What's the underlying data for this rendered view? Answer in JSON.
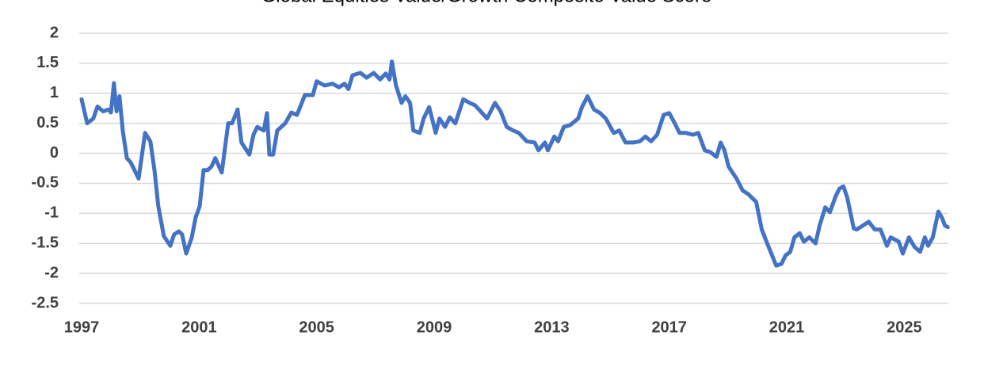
{
  "chart_data": {
    "type": "line",
    "title": "Global Equities Value/Growth Composite Value Score",
    "series": [
      {
        "name": "Composite Value Score",
        "color": "#4472c4",
        "x": [
          1997.0,
          1997.19,
          1997.4,
          1997.54,
          1997.73,
          1997.92,
          1998.0,
          1998.1,
          1998.19,
          1998.29,
          1998.4,
          1998.54,
          1998.67,
          1998.94,
          1999.16,
          1999.34,
          1999.48,
          1999.61,
          1999.8,
          2000.02,
          2000.15,
          2000.31,
          2000.42,
          2000.56,
          2000.75,
          2000.88,
          2001.02,
          2001.15,
          2001.29,
          2001.42,
          2001.55,
          2001.77,
          2001.99,
          2002.12,
          2002.31,
          2002.44,
          2002.71,
          2002.85,
          2002.98,
          2003.2,
          2003.31,
          2003.39,
          2003.52,
          2003.66,
          2003.93,
          2004.14,
          2004.33,
          2004.6,
          2004.87,
          2005.0,
          2005.27,
          2005.54,
          2005.76,
          2005.95,
          2006.08,
          2006.22,
          2006.49,
          2006.7,
          2006.94,
          2007.16,
          2007.35,
          2007.48,
          2007.56,
          2007.7,
          2007.89,
          2008.02,
          2008.18,
          2008.29,
          2008.51,
          2008.64,
          2008.83,
          2009.05,
          2009.18,
          2009.37,
          2009.53,
          2009.72,
          2009.99,
          2010.21,
          2010.39,
          2010.58,
          2010.8,
          2011.07,
          2011.26,
          2011.47,
          2011.69,
          2011.88,
          2012.15,
          2012.42,
          2012.55,
          2012.77,
          2012.87,
          2013.09,
          2013.22,
          2013.41,
          2013.63,
          2013.9,
          2014.03,
          2014.22,
          2014.44,
          2014.65,
          2014.84,
          2015.11,
          2015.3,
          2015.51,
          2015.78,
          2016.0,
          2016.19,
          2016.38,
          2016.59,
          2016.81,
          2017.0,
          2017.19,
          2017.35,
          2017.56,
          2017.81,
          2017.99,
          2018.21,
          2018.4,
          2018.61,
          2018.75,
          2018.88,
          2019.02,
          2019.29,
          2019.5,
          2019.69,
          2019.96,
          2020.15,
          2020.31,
          2020.45,
          2020.64,
          2020.82,
          2020.96,
          2021.12,
          2021.26,
          2021.44,
          2021.58,
          2021.77,
          2021.98,
          2022.12,
          2022.31,
          2022.47,
          2022.66,
          2022.79,
          2022.93,
          2023.06,
          2023.28,
          2023.38,
          2023.6,
          2023.79,
          2024.0,
          2024.19,
          2024.41,
          2024.54,
          2024.81,
          2024.95,
          2025.16,
          2025.35,
          2025.54,
          2025.7,
          2025.81,
          2025.97,
          2026.16,
          2026.29,
          2026.38,
          2026.48
        ],
        "values": [
          0.9,
          0.5,
          0.58,
          0.78,
          0.7,
          0.73,
          0.68,
          1.17,
          0.7,
          0.95,
          0.38,
          -0.08,
          -0.15,
          -0.42,
          0.34,
          0.2,
          -0.28,
          -0.88,
          -1.38,
          -1.54,
          -1.35,
          -1.3,
          -1.35,
          -1.67,
          -1.4,
          -1.07,
          -0.88,
          -0.28,
          -0.28,
          -0.22,
          -0.08,
          -0.32,
          0.5,
          0.5,
          0.73,
          0.18,
          -0.02,
          0.31,
          0.44,
          0.38,
          0.67,
          -0.02,
          -0.02,
          0.38,
          0.5,
          0.68,
          0.64,
          0.97,
          0.97,
          1.2,
          1.13,
          1.16,
          1.1,
          1.16,
          1.07,
          1.3,
          1.34,
          1.26,
          1.34,
          1.23,
          1.33,
          1.23,
          1.53,
          1.13,
          0.84,
          0.95,
          0.84,
          0.38,
          0.34,
          0.58,
          0.77,
          0.34,
          0.58,
          0.44,
          0.6,
          0.5,
          0.9,
          0.84,
          0.8,
          0.7,
          0.58,
          0.84,
          0.7,
          0.44,
          0.38,
          0.34,
          0.2,
          0.18,
          0.05,
          0.18,
          0.05,
          0.28,
          0.2,
          0.44,
          0.47,
          0.58,
          0.77,
          0.95,
          0.73,
          0.67,
          0.58,
          0.34,
          0.38,
          0.18,
          0.18,
          0.2,
          0.28,
          0.2,
          0.31,
          0.64,
          0.67,
          0.5,
          0.34,
          0.34,
          0.31,
          0.34,
          0.05,
          0.02,
          -0.06,
          0.18,
          0.05,
          -0.22,
          -0.42,
          -0.62,
          -0.68,
          -0.81,
          -1.27,
          -1.47,
          -1.64,
          -1.87,
          -1.84,
          -1.7,
          -1.64,
          -1.4,
          -1.33,
          -1.47,
          -1.4,
          -1.5,
          -1.2,
          -0.9,
          -0.98,
          -0.72,
          -0.59,
          -0.55,
          -0.74,
          -1.25,
          -1.27,
          -1.2,
          -1.14,
          -1.27,
          -1.27,
          -1.54,
          -1.4,
          -1.47,
          -1.67,
          -1.4,
          -1.56,
          -1.64,
          -1.4,
          -1.54,
          -1.4,
          -0.97,
          -1.08,
          -1.2,
          -1.23
        ]
      }
    ],
    "xlim": [
      1997,
      2026.5
    ],
    "xticks": [
      1997,
      2001,
      2005,
      2009,
      2013,
      2017,
      2021,
      2025
    ],
    "ylim": [
      -2.5,
      2
    ],
    "yticks": [
      -2.5,
      -2,
      -1.5,
      -1,
      -0.5,
      0,
      0.5,
      1,
      1.5,
      2
    ],
    "grid": true
  }
}
